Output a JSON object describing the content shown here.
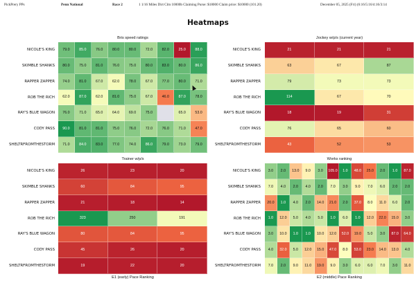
{
  "header": {
    "left": "PickPrery PPs",
    "track": "Penn National",
    "race": "Race 2",
    "conditions": "1 1/16 Miles Dirt Clm 10000b Claiming Purse: $18000 Claim price: $10000 (101.20)",
    "date": "December 05, 2025 (Fri) (6:16/5:16/4:16/3:14"
  },
  "page_title": "Heatmaps",
  "horses": [
    "NICOLE'S KING",
    "SKIMBLE SHANKS",
    "RAPPER ZAPPER",
    "ROB THE RICH",
    "RAY'S BLUE WAGON",
    "CODY PASS",
    "SHELTRFROMTHESTORM"
  ],
  "colors": {
    "red": "#b2182b",
    "orange": "#f46d43",
    "yellow": "#ffffbf",
    "green": "#1a9850",
    "missing": "#e0e0e8"
  },
  "chart_data": [
    {
      "type": "heatmap",
      "title": "Bris speed ratings",
      "rows": [
        "NICOLE'S KING",
        "SKIMBLE SHANKS",
        "RAPPER ZAPPER",
        "ROB THE RICH",
        "RAY'S BLUE WAGON",
        "CODY PASS",
        "SHELTRFROMTHESTORM"
      ],
      "values": [
        [
          "79.0",
          "85.0",
          "76.0",
          "80.0",
          "80.0",
          "72.0",
          "82.0",
          "25.0",
          "88.0"
        ],
        [
          "80.0",
          "75.0",
          "81.0",
          "76.0",
          "75.0",
          "80.0",
          "83.0",
          "80.0",
          "86.0"
        ],
        [
          "74.0",
          "81.0",
          "67.0",
          "62.0",
          "78.0",
          "67.0",
          "77.0",
          "80.0",
          "71.0"
        ],
        [
          "62.0",
          "87.0",
          "62.0",
          "81.0",
          "75.0",
          "67.0",
          "46.0",
          "87.0",
          "78.0"
        ],
        [
          "76.0",
          "71.0",
          "65.0",
          "64.0",
          "69.0",
          "75.0",
          "",
          "65.0",
          "53.0"
        ],
        [
          "90.0",
          "81.0",
          "81.0",
          "75.0",
          "76.0",
          "72.0",
          "76.0",
          "71.0",
          "47.0"
        ],
        [
          "71.0",
          "84.0",
          "83.0",
          "77.0",
          "74.0",
          "86.0",
          "79.0",
          "73.0",
          "79.0"
        ]
      ],
      "vmin": 25,
      "vmax": 90,
      "reverse": false
    },
    {
      "type": "heatmap",
      "title": "Jockey w/p/s (current year)",
      "rows": [
        "NICOLE'S KING",
        "SKIMBLE SHANKS",
        "RAPPER ZAPPER",
        "ROB THE RICH",
        "RAY'S BLUE WAGON",
        "CODY PASS",
        "SHELTRFROMTHESTORM"
      ],
      "values": [
        [
          "21",
          "21",
          "21"
        ],
        [
          "63",
          "67",
          "87"
        ],
        [
          "79",
          "73",
          "73"
        ],
        [
          "114",
          "67",
          "70"
        ],
        [
          "18",
          "19",
          "31"
        ],
        [
          "76",
          "65",
          "60"
        ],
        [
          "43",
          "52",
          "53"
        ]
      ],
      "vmin": 18,
      "vmax": 114,
      "reverse": false
    },
    {
      "type": "heatmap",
      "title": "Trainer w/p/s",
      "rows": [
        "NICOLE'S KING",
        "SKIMBLE SHANKS",
        "RAPPER ZAPPER",
        "ROB THE RICH",
        "RAY'S BLUE WAGON",
        "CODY PASS",
        "SHELTRFROMTHESTORM"
      ],
      "values": [
        [
          "26",
          "23",
          "20"
        ],
        [
          "60",
          "84",
          "95"
        ],
        [
          "21",
          "18",
          "14"
        ],
        [
          "323",
          "250",
          "191"
        ],
        [
          "80",
          "84",
          "95"
        ],
        [
          "45",
          "26",
          "20"
        ],
        [
          "19",
          "22",
          "20"
        ]
      ],
      "vmin": 14,
      "vmax": 323,
      "reverse": false
    },
    {
      "type": "heatmap",
      "title": "Works ranking",
      "rows": [
        "NICOLE'S KING",
        "SKIMBLE SHANKS",
        "RAPPER ZAPPER",
        "ROB THE RICH",
        "RAY'S BLUE WAGON",
        "CODY PASS",
        "SHELTRFROMTHESTORM"
      ],
      "values": [
        [
          "3.0",
          "2.0",
          "13.0",
          "9.0",
          "3.0",
          "105.0",
          "1.0",
          "48.0",
          "25.0",
          "2.0",
          "1.0",
          "87.0"
        ],
        [
          "7.0",
          "4.0",
          "2.0",
          "4.0",
          "2.0",
          "7.0",
          "3.0",
          "9.0",
          "7.0",
          "6.0",
          "2.0",
          "2.0"
        ],
        [
          "20.0",
          "1.0",
          "4.0",
          "2.0",
          "14.0",
          "21.0",
          "2.0",
          "37.0",
          "8.0",
          "11.0",
          "6.0",
          "2.0"
        ],
        [
          "1.0",
          "12.0",
          "5.0",
          "4.0",
          "5.0",
          "1.0",
          "6.0",
          "1.0",
          "12.0",
          "22.0",
          "15.0",
          "3.0"
        ],
        [
          "3.0",
          "10.0",
          "1.0",
          "1.0",
          "10.0",
          "12.0",
          "52.0",
          "19.0",
          "5.0",
          "3.0",
          "87.0",
          "64.0"
        ],
        [
          "4.0",
          "32.0",
          "5.0",
          "12.0",
          "15.0",
          "47.0",
          "8.0",
          "53.0",
          "23.0",
          "14.0",
          "13.0",
          "4.0"
        ],
        [
          "7.0",
          "2.0",
          "9.0",
          "11.0",
          "19.0",
          "9.0",
          "3.0",
          "6.0",
          "6.0",
          "7.0",
          "3.0",
          "11.0"
        ]
      ],
      "vmin": 1,
      "vmax": 105,
      "reverse": true
    }
  ],
  "bottom_titles": [
    "E1 (early) Pace Ranking",
    "E2 (middle) Pace Ranking"
  ]
}
